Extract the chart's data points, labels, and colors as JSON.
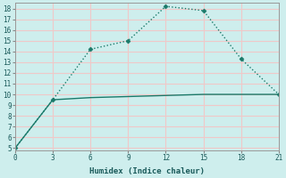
{
  "xlabel": "Humidex (Indice chaleur)",
  "bg_color": "#ceeeed",
  "grid_color": "#f0c8c8",
  "line_color": "#1a7a6a",
  "xlim": [
    0,
    21
  ],
  "ylim": [
    4.8,
    18.5
  ],
  "xticks": [
    0,
    3,
    6,
    9,
    12,
    15,
    18,
    21
  ],
  "yticks": [
    5,
    6,
    7,
    8,
    9,
    10,
    11,
    12,
    13,
    14,
    15,
    16,
    17,
    18
  ],
  "line1_x": [
    0,
    3,
    6,
    9,
    12,
    15,
    18,
    21
  ],
  "line1_y": [
    5.0,
    9.5,
    14.2,
    15.0,
    18.2,
    17.8,
    13.3,
    10.0
  ],
  "line2_x": [
    0,
    3,
    6,
    9,
    12,
    15,
    18,
    21
  ],
  "line2_y": [
    5.0,
    9.5,
    9.7,
    9.8,
    9.9,
    10.0,
    10.0,
    10.0
  ]
}
